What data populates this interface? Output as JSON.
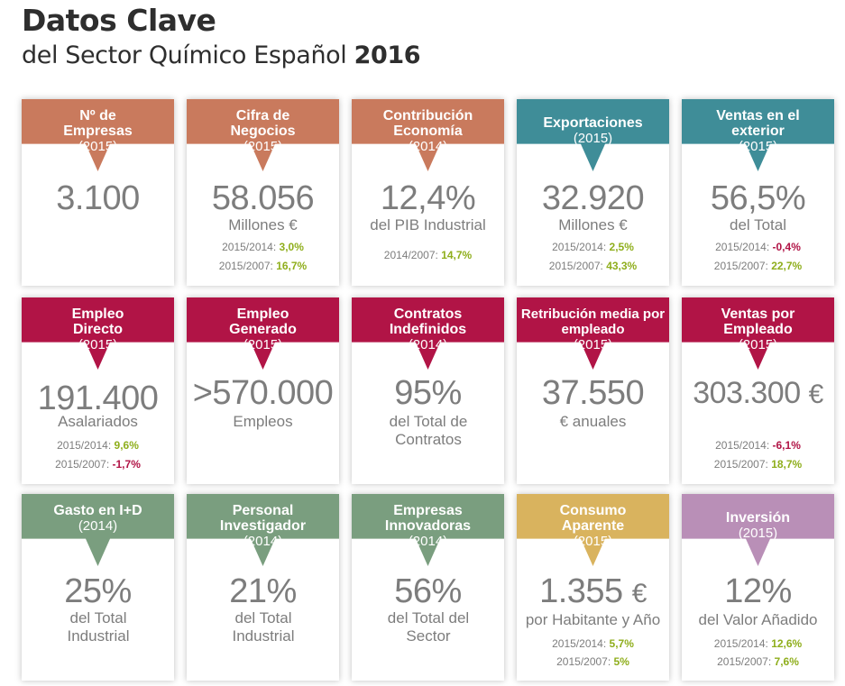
{
  "header": {
    "title": "Datos Clave",
    "subtitle": "del Sector Químico Español",
    "year": "2016"
  },
  "colors": {
    "orange": "#c97a5d",
    "teal": "#3f8d98",
    "crimson": "#b11446",
    "green": "#7a9e7f",
    "gold": "#d9b35e",
    "lilac": "#b98fb7",
    "positive": "#8fae1c",
    "negative": "#b11446"
  },
  "cards": [
    {
      "title": "Nº de Empresas",
      "year": "(2015)",
      "value": "3.100",
      "unit": "",
      "sub": "",
      "stat1_label": "",
      "stat1_value": "",
      "stat2_label": "",
      "stat2_value": ""
    },
    {
      "title": "Cifra de Negocios",
      "year": "(2015)",
      "value": "58.056",
      "unit": "",
      "sub": "Millones €",
      "stat1_label": "2015/2014:",
      "stat1_value": "3,0%",
      "stat2_label": "2015/2007:",
      "stat2_value": "16,7%"
    },
    {
      "title": "Contribución Economía",
      "year": "(2014)",
      "value": "12,4%",
      "unit": "",
      "sub": "del PIB Industrial",
      "stat1_label": "2014/2007:",
      "stat1_value": "14,7%",
      "stat2_label": "",
      "stat2_value": ""
    },
    {
      "title": "Exportaciones",
      "year": "(2015)",
      "value": "32.920",
      "unit": "",
      "sub": "Millones €",
      "stat1_label": "2015/2014:",
      "stat1_value": "2,5%",
      "stat2_label": "2015/2007:",
      "stat2_value": "43,3%"
    },
    {
      "title": "Ventas en el exterior",
      "year": "(2015)",
      "value": "56,5%",
      "unit": "",
      "sub": "del Total",
      "stat1_label": "2015/2014:",
      "stat1_value": "-0,4%",
      "stat2_label": "2015/2007:",
      "stat2_value": "22,7%"
    },
    {
      "title": "Empleo Directo",
      "year": "(2015)",
      "value": "191.400",
      "unit": "",
      "sub": "Asalariados",
      "stat1_label": "2015/2014:",
      "stat1_value": "9,6%",
      "stat2_label": "2015/2007:",
      "stat2_value": "-1,7%"
    },
    {
      "title": "Empleo Generado",
      "year": "(2015)",
      "value": ">570.000",
      "unit": "",
      "sub": "Empleos",
      "stat1_label": "",
      "stat1_value": "",
      "stat2_label": "",
      "stat2_value": ""
    },
    {
      "title": "Contratos Indefinidos",
      "year": "(2014)",
      "value": "95%",
      "unit": "",
      "sub": "del Total de Contratos",
      "stat1_label": "",
      "stat1_value": "",
      "stat2_label": "",
      "stat2_value": ""
    },
    {
      "title": "Retribución media por empleado",
      "year": "(2015)",
      "value": "37.550",
      "unit": "",
      "sub": "€ anuales",
      "stat1_label": "",
      "stat1_value": "",
      "stat2_label": "",
      "stat2_value": ""
    },
    {
      "title": "Ventas por Empleado",
      "year": "(2015)",
      "value": "303.300",
      "unit": "€",
      "sub": "",
      "stat1_label": "2015/2014:",
      "stat1_value": "-6,1%",
      "stat2_label": "2015/2007:",
      "stat2_value": "18,7%"
    },
    {
      "title": "Gasto en I+D",
      "year": "(2014)",
      "value": "25%",
      "unit": "",
      "sub": "del Total Industrial",
      "stat1_label": "",
      "stat1_value": "",
      "stat2_label": "",
      "stat2_value": ""
    },
    {
      "title": "Personal Investigador",
      "year": "(2014)",
      "value": "21%",
      "unit": "",
      "sub": "del Total Industrial",
      "stat1_label": "",
      "stat1_value": "",
      "stat2_label": "",
      "stat2_value": ""
    },
    {
      "title": "Empresas Innovadoras",
      "year": "(2014)",
      "value": "56%",
      "unit": "",
      "sub": "del Total del Sector",
      "stat1_label": "",
      "stat1_value": "",
      "stat2_label": "",
      "stat2_value": ""
    },
    {
      "title": "Consumo Aparente",
      "year": "(2015)",
      "value": "1.355",
      "unit": "€",
      "sub": "por Habitante y Año",
      "stat1_label": "2015/2014:",
      "stat1_value": "5,7%",
      "stat2_label": "2015/2007:",
      "stat2_value": "5%"
    },
    {
      "title": "Inversión",
      "year": "(2015)",
      "value": "12%",
      "unit": "",
      "sub": "del Valor Añadido",
      "stat1_label": "2015/2014:",
      "stat1_value": "12,6%",
      "stat2_label": "2015/2007:",
      "stat2_value": "7,6%"
    }
  ]
}
